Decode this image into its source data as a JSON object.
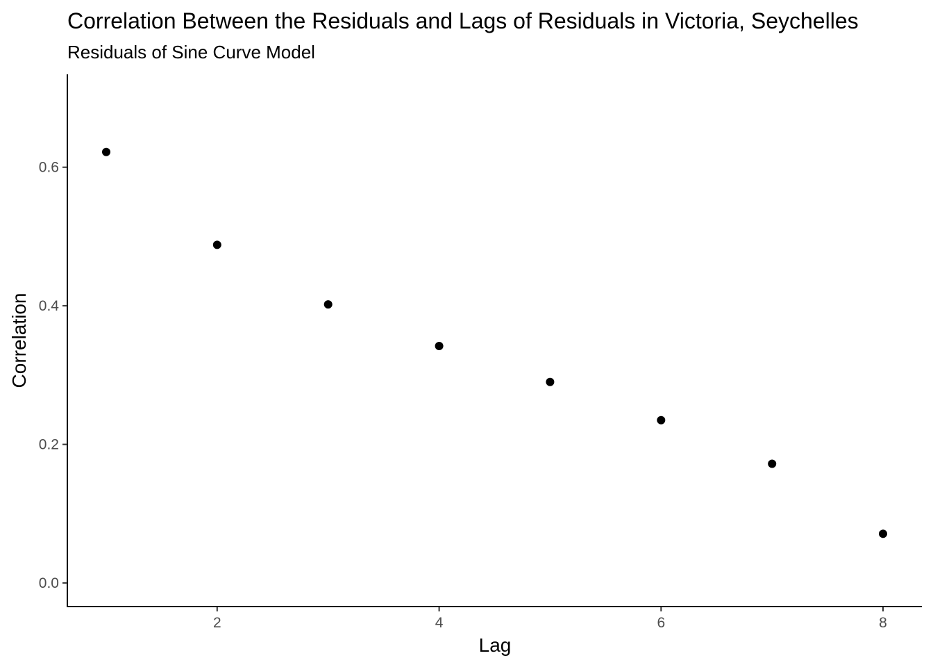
{
  "chart_data": {
    "type": "scatter",
    "title": "Correlation Between the Residuals and Lags of Residuals in Victoria, Seychelles",
    "subtitle": "Residuals of Sine Curve Model",
    "xlabel": "Lag",
    "ylabel": "Correlation",
    "x": [
      1,
      2,
      3,
      4,
      5,
      6,
      7,
      8
    ],
    "y": [
      0.622,
      0.488,
      0.402,
      0.342,
      0.29,
      0.235,
      0.172,
      0.071
    ],
    "xlim": [
      0.65,
      8.35
    ],
    "ylim": [
      -0.034,
      0.734
    ],
    "x_ticks": [
      2,
      4,
      6,
      8
    ],
    "x_tick_labels": [
      "2",
      "4",
      "6",
      "8"
    ],
    "y_ticks": [
      0.0,
      0.2,
      0.4,
      0.6
    ],
    "y_tick_labels": [
      "0.0",
      "0.2",
      "0.4",
      "0.6"
    ],
    "grid": false,
    "legend": "none",
    "point_color": "#000000"
  }
}
